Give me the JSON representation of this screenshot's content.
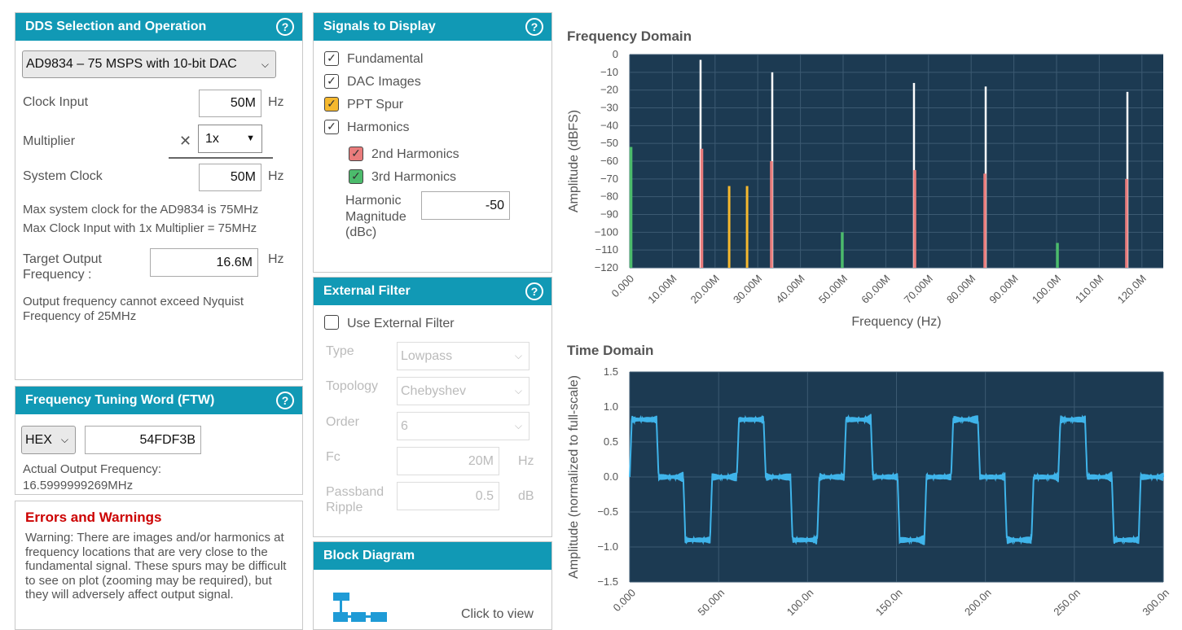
{
  "dds": {
    "title": "DDS Selection and Operation",
    "help": "?",
    "device": "AD9834 – 75 MSPS with 10-bit DAC",
    "clock_input_label": "Clock Input",
    "clock_input_value": "50M",
    "hz": "Hz",
    "multiplier_label": "Multiplier",
    "times": "✕",
    "multiplier_value": "1x",
    "system_clock_label": "System Clock",
    "system_clock_value": "50M",
    "info_1": "Max system clock for the AD9834 is 75MHz",
    "info_2": "Max Clock Input with 1x Multiplier = 75MHz",
    "target_label_1": "Target Output",
    "target_label_2": "Frequency :",
    "target_value": "16.6M",
    "nyquist_1": "Output frequency cannot exceed Nyquist",
    "nyquist_2": "Frequency of 25MHz"
  },
  "ftw": {
    "title": "Frequency Tuning Word (FTW)",
    "format": "HEX",
    "value": "54FDF3B",
    "actual_label": "Actual Output Frequency:",
    "actual_value": "16.5999999269MHz"
  },
  "errors": {
    "title": "Errors and Warnings",
    "lines": [
      "Warning: There are images and/or harmonics at",
      "frequency locations that are very close to the",
      "fundamental signal. These spurs may be difficult",
      "to see on plot (zooming may be required), but",
      "they will adversely affect output signal."
    ]
  },
  "signals": {
    "title": "Signals to Display",
    "fundamental": "Fundamental",
    "dac_images": "DAC Images",
    "ppt_spur": "PPT Spur",
    "harmonics": "Harmonics",
    "second": "2nd Harmonics",
    "third": "3rd Harmonics",
    "harm_mag_1": "Harmonic",
    "harm_mag_2": "Magnitude",
    "harm_mag_3": "(dBc)",
    "harm_mag_value": "-50",
    "colors": {
      "ppt": "#f5b82e",
      "second": "#e97c7c",
      "third": "#4cbb6c"
    }
  },
  "filter": {
    "title": "External Filter",
    "use_label": "Use External Filter",
    "type_label": "Type",
    "type_value": "Lowpass",
    "topology_label": "Topology",
    "topology_value": "Chebyshev",
    "order_label": "Order",
    "order_value": "6",
    "fc_label": "Fc",
    "fc_value": "20M",
    "hz": "Hz",
    "ripple_label_1": "Passband",
    "ripple_label_2": "Ripple",
    "ripple_value": "0.5",
    "db": "dB"
  },
  "block": {
    "title": "Block Diagram",
    "click": "Click to view"
  },
  "chart_data": [
    {
      "type": "bar",
      "title": "Frequency Domain",
      "xlabel": "Frequency (Hz)",
      "ylabel": "Amplitude (dBFS)",
      "xlim": [
        0,
        125
      ],
      "ylim": [
        -120,
        0
      ],
      "x_ticks": [
        0,
        10,
        20,
        30,
        40,
        50,
        60,
        70,
        80,
        90,
        100,
        110,
        120
      ],
      "x_tick_labels": [
        "0.000",
        "10.00M",
        "20.00M",
        "30.00M",
        "40.00M",
        "50.00M",
        "60.00M",
        "70.00M",
        "80.00M",
        "90.00M",
        "100.0M",
        "110.0M",
        "120.0M"
      ],
      "y_ticks": [
        0,
        -10,
        -20,
        -30,
        -40,
        -50,
        -60,
        -70,
        -80,
        -90,
        -100,
        -110,
        -120
      ],
      "y_tick_labels": [
        "0",
        "−10",
        "−20",
        "−30",
        "−40",
        "−50",
        "−60",
        "−70",
        "−80",
        "−90",
        "−100",
        "−110",
        "−120"
      ],
      "background": "#1c3a52",
      "series": [
        {
          "name": "Fundamental",
          "color": "#ffffff",
          "x": [
            16.6,
            33.4,
            66.6,
            83.4,
            116.6
          ],
          "values": [
            -3,
            -10,
            -16,
            -18,
            -21
          ]
        },
        {
          "name": "PPT Spur",
          "color": "#f5b82e",
          "x": [
            23.3,
            27.5
          ],
          "values": [
            -74,
            -74
          ]
        },
        {
          "name": "2nd Harmonics",
          "color": "#e97c7c",
          "x": [
            16.9,
            33.2,
            66.8,
            83.2,
            116.4
          ],
          "values": [
            -53,
            -60,
            -65,
            -67,
            -70
          ]
        },
        {
          "name": "3rd Harmonics",
          "color": "#4cbb6c",
          "x": [
            0.3,
            49.8,
            100.2
          ],
          "values": [
            -52,
            -100,
            -106
          ]
        }
      ]
    },
    {
      "type": "line",
      "title": "Time Domain",
      "xlabel": "",
      "ylabel": "Amplitude (normalized to full-scale)",
      "xlim": [
        0,
        300
      ],
      "ylim": [
        -1.5,
        1.5
      ],
      "x_ticks": [
        0,
        50,
        100,
        150,
        200,
        250,
        300
      ],
      "x_tick_labels": [
        "0.000",
        "50.00n",
        "100.0n",
        "150.0n",
        "200.0n",
        "250.0n",
        "300.0n"
      ],
      "y_ticks": [
        1.5,
        1.0,
        0.5,
        0.0,
        -0.5,
        -1.0,
        -1.5
      ],
      "y_tick_labels": [
        "1.5",
        "1.0",
        "0.5",
        "0.0",
        "−0.5",
        "−1.0",
        "−1.5"
      ],
      "background": "#1c3a52",
      "color": "#3fb4ea",
      "period_ns": 60.24,
      "levels": [
        0.82,
        0.0,
        -0.9,
        0.0
      ]
    }
  ]
}
